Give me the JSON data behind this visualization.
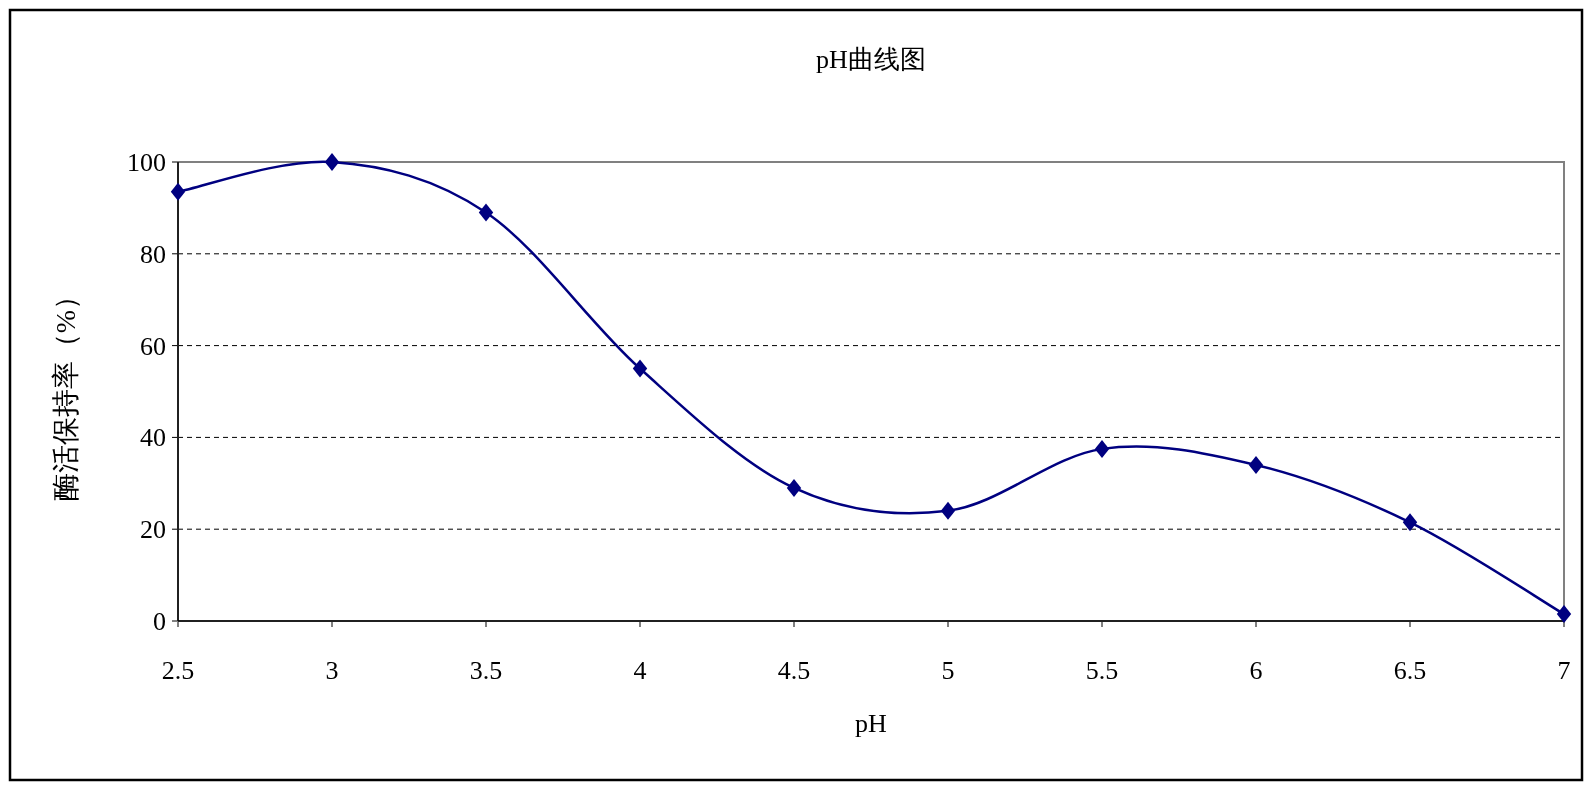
{
  "chart_data": {
    "type": "line",
    "title": "pH曲线图",
    "xlabel": "pH",
    "ylabel": "酶活保持率（%）",
    "x": [
      2.5,
      3,
      3.5,
      4,
      4.5,
      5,
      5.5,
      6,
      6.5,
      7
    ],
    "series": [
      {
        "color": "#000080",
        "values": [
          93.5,
          100,
          89,
          55,
          29,
          24,
          37.5,
          34,
          21.5,
          1.5
        ]
      }
    ],
    "xlim": [
      2.5,
      7
    ],
    "xticks": [
      2.5,
      3,
      3.5,
      4,
      4.5,
      5,
      5.5,
      6,
      6.5,
      7
    ],
    "ylim": [
      0,
      100
    ],
    "yticks": [
      0,
      20,
      40,
      60,
      80,
      100
    ],
    "grid": "y",
    "marker": "diamond",
    "line_style": "solid"
  }
}
